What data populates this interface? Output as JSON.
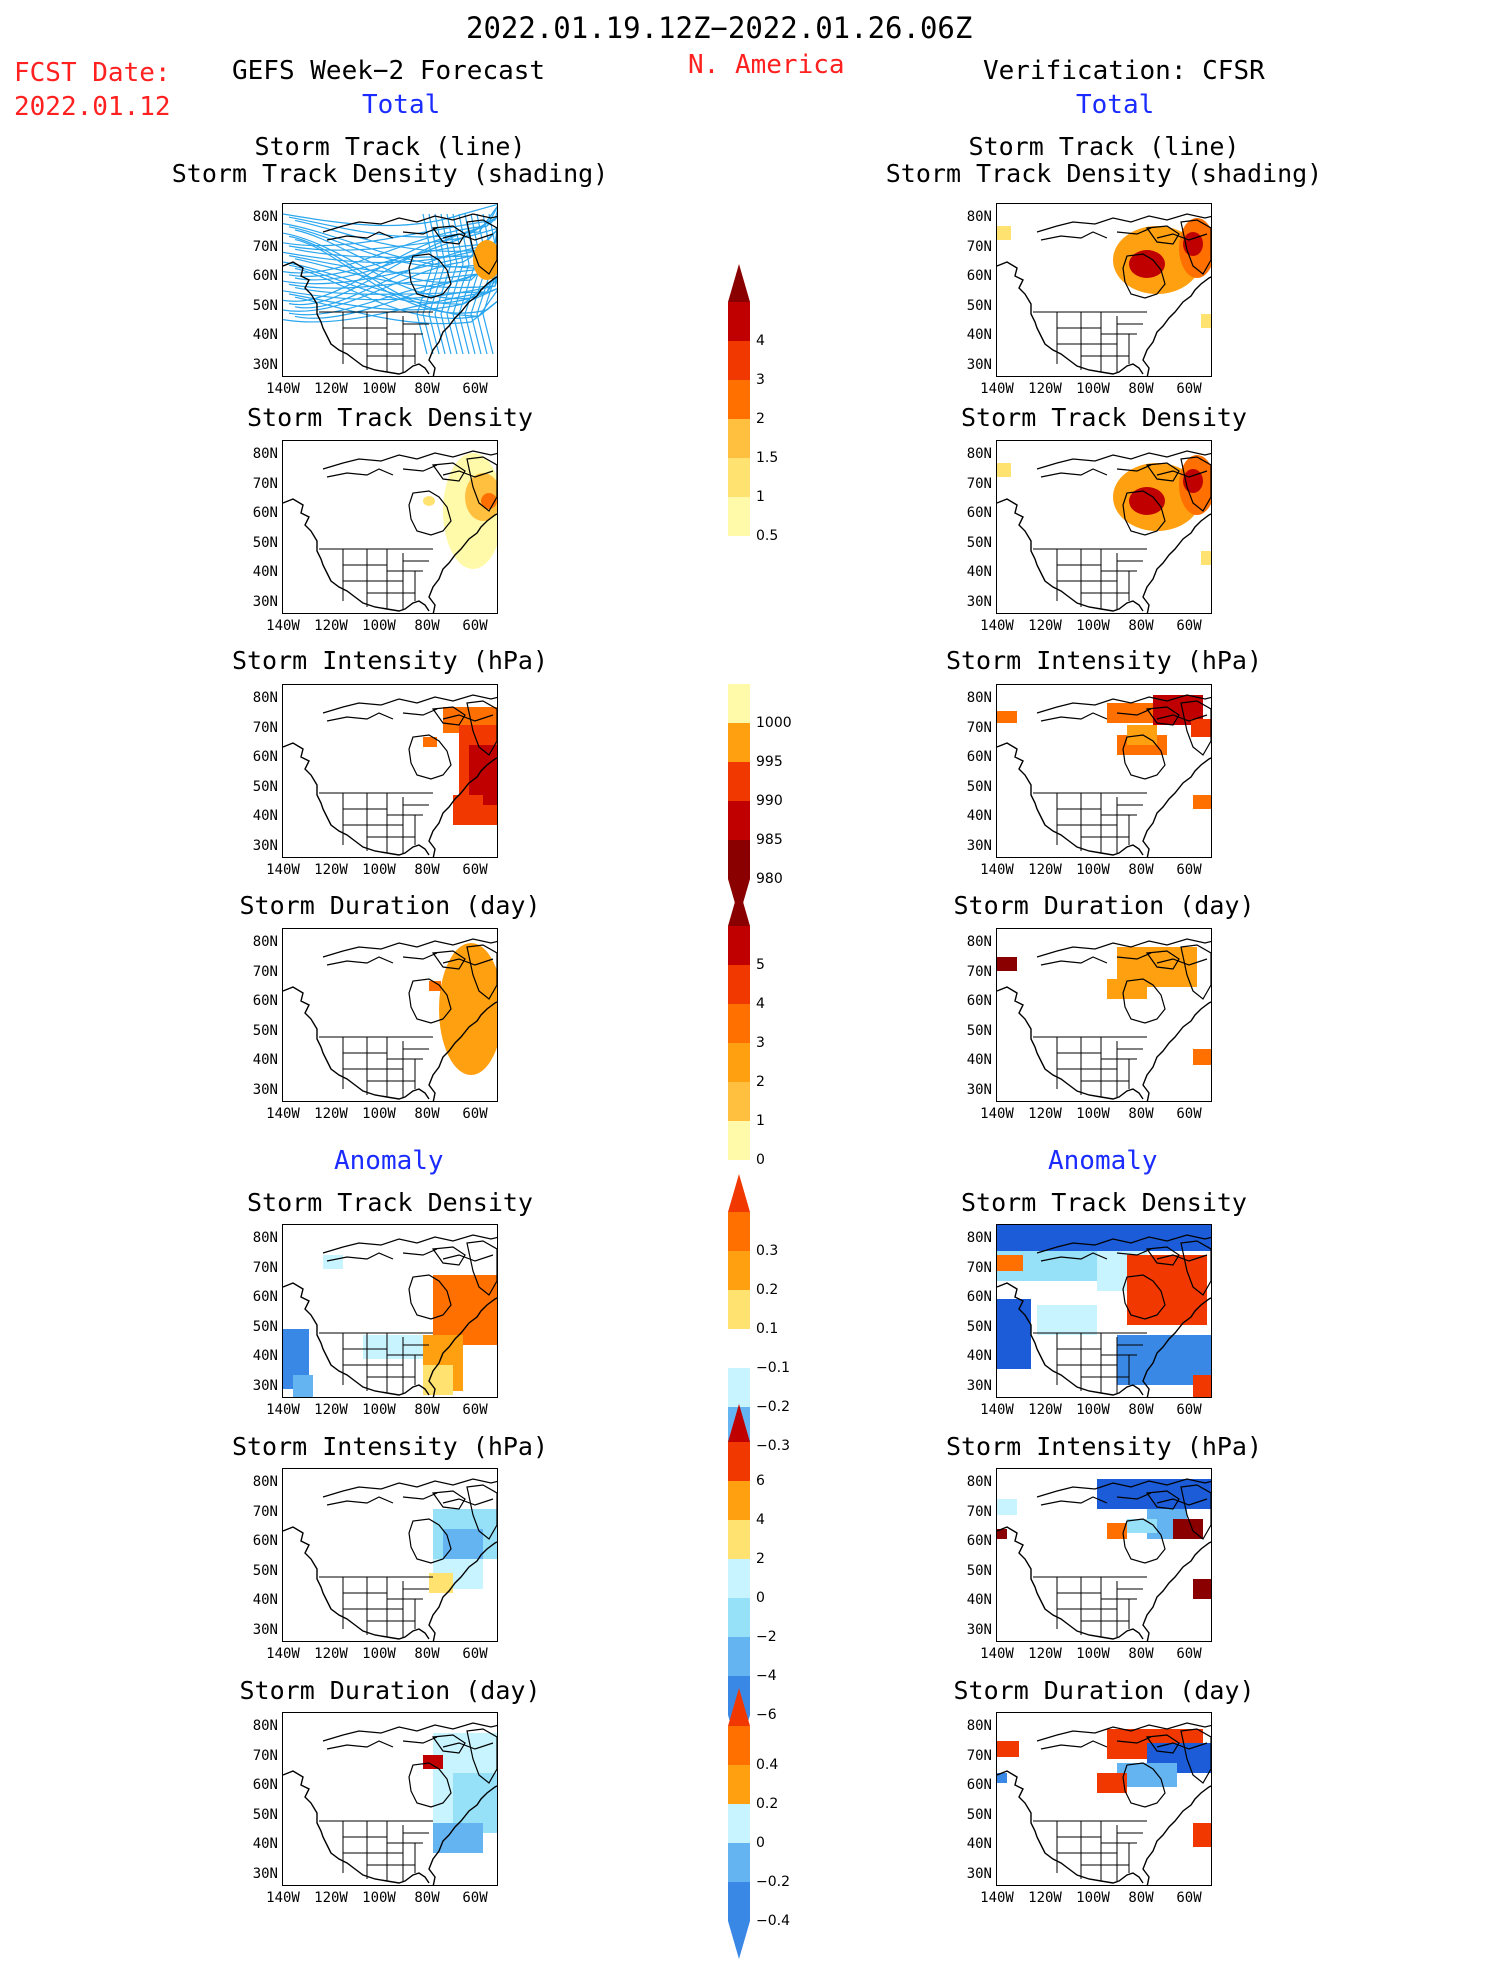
{
  "header": {
    "date_range": "2022.01.19.12Z−2022.01.26.06Z",
    "fcst_label": "FCST Date:",
    "fcst_date": "2022.01.12",
    "left_title": "GEFS Week−2 Forecast",
    "region": "N. America",
    "right_title": "Verification: CFSR",
    "total_label": "Total",
    "anomaly_label": "Anomaly"
  },
  "panel_titles": {
    "track_line": "Storm Track (line)",
    "track_shading": "Storm Track Density (shading)",
    "density": "Storm Track Density",
    "intensity": "Storm Intensity (hPa)",
    "duration": "Storm Duration (day)"
  },
  "axes": {
    "lat_ticks": [
      "80N",
      "70N",
      "60N",
      "50N",
      "40N",
      "30N"
    ],
    "lon_ticks": [
      "140W",
      "120W",
      "100W",
      "80W",
      "60W"
    ]
  },
  "colorbars": {
    "density_total": [
      "4",
      "3",
      "2",
      "1.5",
      "1",
      "0.5"
    ],
    "intensity_total": [
      "1000",
      "995",
      "990",
      "985",
      "980"
    ],
    "duration_total": [
      "5",
      "4",
      "3",
      "2",
      "1",
      "0"
    ],
    "density_anom": [
      "0.3",
      "0.2",
      "0.1",
      "−0.1",
      "−0.2",
      "−0.3"
    ],
    "intensity_anom": [
      "6",
      "4",
      "2",
      "0",
      "−2",
      "−4",
      "−6"
    ],
    "duration_anom": [
      "0.4",
      "0.2",
      "0",
      "−0.2",
      "−0.4"
    ]
  },
  "colors": {
    "title_red": "#ff2020",
    "label_blue": "#1a2cff",
    "track_line": "#2aa6ee",
    "warm_scale": [
      "#fffaaa",
      "#ffe270",
      "#ffc040",
      "#ffa010",
      "#ff7000",
      "#f03800",
      "#c00000",
      "#8a0000"
    ],
    "cool_scale": [
      "#c8f4ff",
      "#96e0f8",
      "#64b4f2",
      "#3a88e6",
      "#1c5cd8"
    ]
  }
}
